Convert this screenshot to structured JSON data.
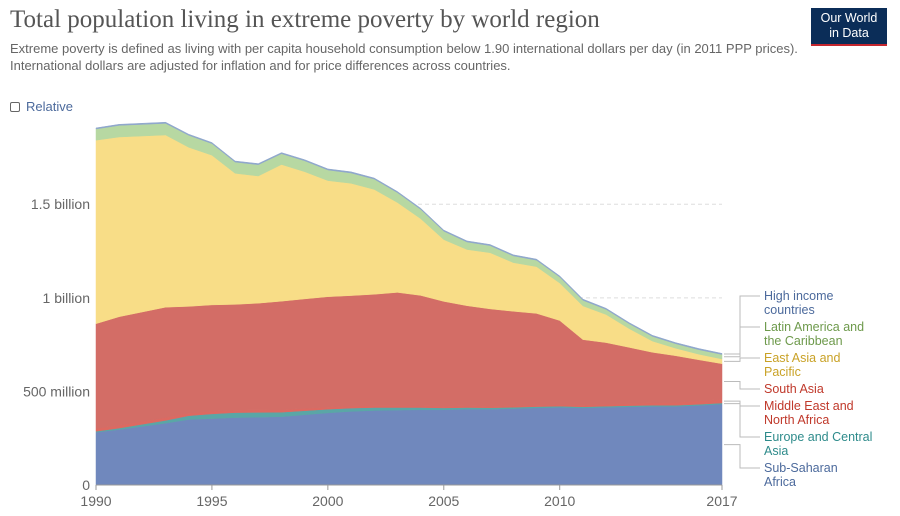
{
  "header": {
    "title": "Total population living in extreme poverty by world region",
    "subtitle": "Extreme poverty is defined as living with per capita household consumption below 1.90 international dollars per day (in 2011 PPP prices). International dollars are adjusted for inflation and for price differences across countries.",
    "logo_line1": "Our World",
    "logo_line2": "in Data",
    "relative_label": "Relative"
  },
  "colors": {
    "sub_saharan_africa": "#7088bd",
    "europe_central_asia": "#5aa6a6",
    "middle_east_north_africa": "#dd6961",
    "south_asia": "#d36d66",
    "east_asia_pacific": "#f8dd87",
    "latin_america_caribbean": "#b7d8a2",
    "high_income": "#8fa7cc"
  },
  "chart_data": {
    "type": "area",
    "stacked": true,
    "x": [
      1990,
      1991,
      1993,
      1994,
      1995,
      1996,
      1997,
      1998,
      1999,
      2000,
      2001,
      2002,
      2003,
      2004,
      2005,
      2006,
      2007,
      2008,
      2009,
      2010,
      2011,
      2012,
      2013,
      2014,
      2015,
      2016,
      2017
    ],
    "xlim": [
      1990,
      2017
    ],
    "ylim": [
      0,
      1950000000
    ],
    "x_ticks": [
      1990,
      1995,
      2000,
      2005,
      2010,
      2017
    ],
    "y_ticks": [
      {
        "value": 0,
        "label": "0"
      },
      {
        "value": 500000000,
        "label": "500 million"
      },
      {
        "value": 1000000000,
        "label": "1 billion"
      },
      {
        "value": 1500000000,
        "label": "1.5 billion"
      }
    ],
    "grid": "horizontal-dashed",
    "series": [
      {
        "name": "Sub-Saharan Africa",
        "color_key": "sub_saharan_africa",
        "values": [
          282000000,
          296000000,
          330000000,
          350000000,
          355000000,
          360000000,
          362000000,
          365000000,
          375000000,
          385000000,
          393000000,
          398000000,
          400000000,
          402000000,
          402000000,
          405000000,
          405000000,
          408000000,
          412000000,
          415000000,
          412000000,
          415000000,
          418000000,
          420000000,
          420000000,
          425000000,
          432000000
        ]
      },
      {
        "name": "Europe and Central Asia",
        "color_key": "europe_central_asia",
        "values": [
          5000000,
          8000000,
          15000000,
          20000000,
          25000000,
          27000000,
          26000000,
          24000000,
          22000000,
          20000000,
          18000000,
          16000000,
          14000000,
          12000000,
          10000000,
          9000000,
          8000000,
          7000000,
          7000000,
          6000000,
          6000000,
          6000000,
          6000000,
          6000000,
          6000000,
          6000000,
          6000000
        ]
      },
      {
        "name": "Middle East and North Africa",
        "color_key": "middle_east_north_africa",
        "values": [
          15000000,
          15000000,
          15000000,
          14000000,
          14000000,
          13000000,
          13000000,
          13000000,
          12000000,
          11000000,
          11000000,
          10000000,
          10000000,
          9000000,
          9000000,
          9000000,
          8000000,
          8000000,
          8000000,
          8000000,
          9000000,
          10000000,
          11000000,
          13000000,
          15000000,
          18000000,
          20000000
        ]
      },
      {
        "name": "South Asia",
        "color_key": "south_asia",
        "values": [
          560000000,
          580000000,
          590000000,
          570000000,
          568000000,
          565000000,
          570000000,
          580000000,
          585000000,
          590000000,
          590000000,
          595000000,
          605000000,
          590000000,
          560000000,
          535000000,
          520000000,
          505000000,
          490000000,
          450000000,
          350000000,
          330000000,
          300000000,
          270000000,
          250000000,
          220000000,
          190000000
        ]
      },
      {
        "name": "East Asia and Pacific",
        "color_key": "east_asia_pacific",
        "values": [
          980000000,
          960000000,
          920000000,
          850000000,
          800000000,
          700000000,
          680000000,
          730000000,
          680000000,
          620000000,
          600000000,
          560000000,
          480000000,
          410000000,
          330000000,
          300000000,
          300000000,
          260000000,
          250000000,
          200000000,
          180000000,
          150000000,
          100000000,
          60000000,
          40000000,
          30000000,
          25000000
        ]
      },
      {
        "name": "Latin America and the Caribbean",
        "color_key": "latin_america_caribbean",
        "values": [
          60000000,
          62000000,
          62000000,
          64000000,
          62000000,
          60000000,
          60000000,
          58000000,
          58000000,
          57000000,
          55000000,
          55000000,
          53000000,
          50000000,
          45000000,
          40000000,
          38000000,
          36000000,
          34000000,
          32000000,
          30000000,
          27000000,
          26000000,
          25000000,
          24000000,
          24000000,
          24000000
        ]
      },
      {
        "name": "High income countries",
        "color_key": "high_income",
        "values": [
          6000000,
          6000000,
          6000000,
          6000000,
          6000000,
          6000000,
          6000000,
          6000000,
          6000000,
          6000000,
          6000000,
          6000000,
          6000000,
          6000000,
          6000000,
          6000000,
          6000000,
          6000000,
          6000000,
          6000000,
          6000000,
          6000000,
          6000000,
          6000000,
          6000000,
          6000000,
          6000000
        ]
      }
    ],
    "legend": [
      {
        "lines": [
          "High income",
          "countries"
        ],
        "color_key": "high_income",
        "text_color": "#4c6a9c"
      },
      {
        "lines": [
          "Latin America and",
          "the Caribbean"
        ],
        "color_key": "latin_america_caribbean",
        "text_color": "#6e9a4c"
      },
      {
        "lines": [
          "East Asia and",
          "Pacific"
        ],
        "color_key": "east_asia_pacific",
        "text_color": "#c9a227"
      },
      {
        "lines": [
          "South Asia"
        ],
        "color_key": "south_asia",
        "text_color": "#c0392b"
      },
      {
        "lines": [
          "Middle East and",
          "North Africa"
        ],
        "color_key": "middle_east_north_africa",
        "text_color": "#c0392b"
      },
      {
        "lines": [
          "Europe and Central",
          "Asia"
        ],
        "color_key": "europe_central_asia",
        "text_color": "#2e8b8b"
      },
      {
        "lines": [
          "Sub-Saharan",
          "Africa"
        ],
        "color_key": "sub_saharan_africa",
        "text_color": "#4c6a9c"
      }
    ],
    "legend_placement": "right"
  }
}
